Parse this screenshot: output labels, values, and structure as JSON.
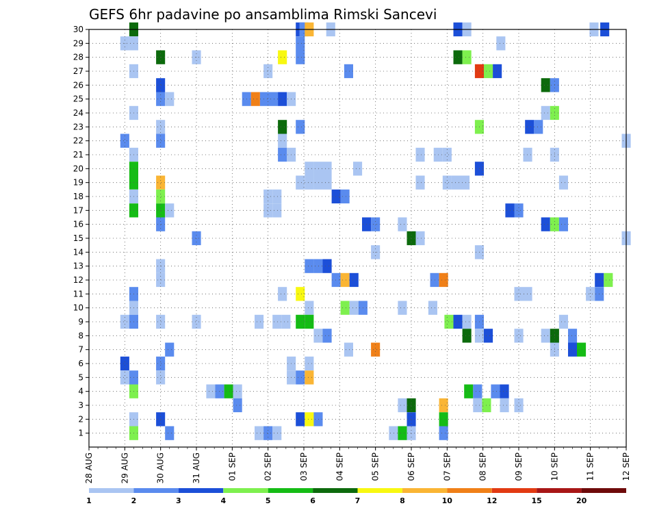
{
  "chart_data": {
    "type": "heatmap",
    "title": "GEFS 6hr padavine po ansamblima Rimski Sancevi",
    "y_ticks": [
      1,
      2,
      3,
      4,
      5,
      6,
      7,
      8,
      9,
      10,
      11,
      12,
      13,
      14,
      15,
      16,
      17,
      18,
      19,
      20,
      21,
      22,
      23,
      24,
      25,
      26,
      27,
      28,
      29,
      30
    ],
    "x_ticks": [
      "28 AUG",
      "29 AUG",
      "30 AUG",
      "31 AUG",
      "01 SEP",
      "02 SEP",
      "03 SEP",
      "04 SEP",
      "05 SEP",
      "06 SEP",
      "07 SEP",
      "08 SEP",
      "09 SEP",
      "10 SEP",
      "11 SEP",
      "12 SEP"
    ],
    "x_range_days": [
      0,
      15
    ],
    "y_range": [
      0,
      30
    ],
    "grid": true,
    "legend_placement": "bottom",
    "colorbar": {
      "labels": [
        "1",
        "2",
        "3",
        "4",
        "5",
        "6",
        "7",
        "8",
        "10",
        "12",
        "15",
        "20"
      ],
      "colors": [
        "#aac5f2",
        "#5a8bee",
        "#1c4fd8",
        "#7ef04e",
        "#15bc15",
        "#0c6a0c",
        "#f8f811",
        "#fab534",
        "#f08018",
        "#e23a12",
        "#a81616",
        "#6e0a0a"
      ]
    },
    "cells": [
      [
        1.25,
        30,
        "#0c6a0c"
      ],
      [
        5.9,
        30,
        "#1c4fd8"
      ],
      [
        6.0,
        30,
        "#5a8bee"
      ],
      [
        6.15,
        30,
        "#fab534"
      ],
      [
        6.75,
        30,
        "#aac5f2"
      ],
      [
        10.3,
        30,
        "#1c4fd8"
      ],
      [
        10.55,
        30,
        "#aac5f2"
      ],
      [
        14.1,
        30,
        "#aac5f2"
      ],
      [
        14.4,
        30,
        "#1c4fd8"
      ],
      [
        1.0,
        29,
        "#aac5f2"
      ],
      [
        1.25,
        29,
        "#aac5f2"
      ],
      [
        5.9,
        29,
        "#5a8bee"
      ],
      [
        11.5,
        29,
        "#aac5f2"
      ],
      [
        2.0,
        28,
        "#0c6a0c"
      ],
      [
        3.0,
        28,
        "#aac5f2"
      ],
      [
        5.4,
        28,
        "#f8f811"
      ],
      [
        5.9,
        28,
        "#5a8bee"
      ],
      [
        10.3,
        28,
        "#0c6a0c"
      ],
      [
        10.55,
        28,
        "#7ef04e"
      ],
      [
        1.25,
        27,
        "#aac5f2"
      ],
      [
        5.0,
        27,
        "#aac5f2"
      ],
      [
        7.25,
        27,
        "#5a8bee"
      ],
      [
        10.9,
        27,
        "#e23a12"
      ],
      [
        11.15,
        27,
        "#7ef04e"
      ],
      [
        11.4,
        27,
        "#1c4fd8"
      ],
      [
        2.0,
        26,
        "#1c4fd8"
      ],
      [
        12.75,
        26,
        "#0c6a0c"
      ],
      [
        13.0,
        26,
        "#5a8bee"
      ],
      [
        2.0,
        25,
        "#5a8bee"
      ],
      [
        2.25,
        25,
        "#aac5f2"
      ],
      [
        4.4,
        25,
        "#5a8bee"
      ],
      [
        4.65,
        25,
        "#f08018"
      ],
      [
        4.9,
        25,
        "#5a8bee"
      ],
      [
        5.15,
        25,
        "#5a8bee"
      ],
      [
        5.4,
        25,
        "#1c4fd8"
      ],
      [
        5.65,
        25,
        "#aac5f2"
      ],
      [
        1.25,
        24,
        "#aac5f2"
      ],
      [
        12.75,
        24,
        "#aac5f2"
      ],
      [
        13.0,
        24,
        "#7ef04e"
      ],
      [
        2.0,
        23,
        "#aac5f2"
      ],
      [
        5.4,
        23,
        "#0c6a0c"
      ],
      [
        5.9,
        23,
        "#5a8bee"
      ],
      [
        10.9,
        23,
        "#7ef04e"
      ],
      [
        12.3,
        23,
        "#1c4fd8"
      ],
      [
        12.55,
        23,
        "#5a8bee"
      ],
      [
        1.0,
        22,
        "#5a8bee"
      ],
      [
        2.0,
        22,
        "#5a8bee"
      ],
      [
        5.4,
        22,
        "#aac5f2"
      ],
      [
        15.0,
        22,
        "#aac5f2"
      ],
      [
        1.25,
        21,
        "#aac5f2"
      ],
      [
        5.4,
        21,
        "#5a8bee"
      ],
      [
        5.65,
        21,
        "#aac5f2"
      ],
      [
        9.25,
        21,
        "#aac5f2"
      ],
      [
        9.75,
        21,
        "#aac5f2"
      ],
      [
        10.0,
        21,
        "#aac5f2"
      ],
      [
        12.25,
        21,
        "#aac5f2"
      ],
      [
        13.0,
        21,
        "#aac5f2"
      ],
      [
        1.25,
        20,
        "#15bc15"
      ],
      [
        6.15,
        20,
        "#aac5f2"
      ],
      [
        6.4,
        20,
        "#aac5f2"
      ],
      [
        6.65,
        20,
        "#aac5f2"
      ],
      [
        7.5,
        20,
        "#aac5f2"
      ],
      [
        10.9,
        20,
        "#1c4fd8"
      ],
      [
        1.25,
        19,
        "#15bc15"
      ],
      [
        6.15,
        19,
        "#aac5f2"
      ],
      [
        6.4,
        19,
        "#aac5f2"
      ],
      [
        6.65,
        19,
        "#aac5f2"
      ],
      [
        2.0,
        19,
        "#fab534"
      ],
      [
        5.9,
        19,
        "#aac5f2"
      ],
      [
        9.25,
        19,
        "#aac5f2"
      ],
      [
        10.0,
        19,
        "#aac5f2"
      ],
      [
        10.25,
        19,
        "#aac5f2"
      ],
      [
        10.5,
        19,
        "#aac5f2"
      ],
      [
        13.25,
        19,
        "#aac5f2"
      ],
      [
        2.0,
        18,
        "#7ef04e"
      ],
      [
        1.25,
        18,
        "#aac5f2"
      ],
      [
        5.0,
        18,
        "#aac5f2"
      ],
      [
        5.25,
        18,
        "#aac5f2"
      ],
      [
        6.9,
        18,
        "#1c4fd8"
      ],
      [
        7.15,
        18,
        "#5a8bee"
      ],
      [
        1.25,
        17,
        "#15bc15"
      ],
      [
        2.0,
        17,
        "#15bc15"
      ],
      [
        2.25,
        17,
        "#aac5f2"
      ],
      [
        5.0,
        17,
        "#aac5f2"
      ],
      [
        5.25,
        17,
        "#aac5f2"
      ],
      [
        11.75,
        17,
        "#1c4fd8"
      ],
      [
        12.0,
        17,
        "#5a8bee"
      ],
      [
        2.0,
        16,
        "#5a8bee"
      ],
      [
        7.75,
        16,
        "#1c4fd8"
      ],
      [
        8.0,
        16,
        "#5a8bee"
      ],
      [
        8.75,
        16,
        "#aac5f2"
      ],
      [
        12.75,
        16,
        "#1c4fd8"
      ],
      [
        13.0,
        16,
        "#7ef04e"
      ],
      [
        13.25,
        16,
        "#5a8bee"
      ],
      [
        3.0,
        15,
        "#5a8bee"
      ],
      [
        9.0,
        15,
        "#0c6a0c"
      ],
      [
        9.25,
        15,
        "#aac5f2"
      ],
      [
        15.0,
        15,
        "#aac5f2"
      ],
      [
        8.0,
        14,
        "#aac5f2"
      ],
      [
        10.9,
        14,
        "#aac5f2"
      ],
      [
        6.15,
        13,
        "#5a8bee"
      ],
      [
        6.4,
        13,
        "#5a8bee"
      ],
      [
        6.65,
        13,
        "#1c4fd8"
      ],
      [
        2.0,
        13,
        "#aac5f2"
      ],
      [
        2.0,
        12,
        "#aac5f2"
      ],
      [
        6.9,
        12,
        "#5a8bee"
      ],
      [
        7.15,
        12,
        "#fab534"
      ],
      [
        7.4,
        12,
        "#1c4fd8"
      ],
      [
        9.65,
        12,
        "#5a8bee"
      ],
      [
        9.9,
        12,
        "#f08018"
      ],
      [
        14.25,
        12,
        "#1c4fd8"
      ],
      [
        14.5,
        12,
        "#7ef04e"
      ],
      [
        1.25,
        11,
        "#5a8bee"
      ],
      [
        5.4,
        11,
        "#aac5f2"
      ],
      [
        5.9,
        11,
        "#f8f811"
      ],
      [
        12.0,
        11,
        "#aac5f2"
      ],
      [
        12.25,
        11,
        "#aac5f2"
      ],
      [
        14.0,
        11,
        "#aac5f2"
      ],
      [
        14.25,
        11,
        "#5a8bee"
      ],
      [
        1.25,
        10,
        "#aac5f2"
      ],
      [
        6.15,
        10,
        "#aac5f2"
      ],
      [
        7.15,
        10,
        "#7ef04e"
      ],
      [
        7.4,
        10,
        "#aac5f2"
      ],
      [
        7.65,
        10,
        "#5a8bee"
      ],
      [
        8.75,
        10,
        "#aac5f2"
      ],
      [
        9.6,
        10,
        "#aac5f2"
      ],
      [
        1.0,
        9,
        "#aac5f2"
      ],
      [
        1.25,
        9,
        "#5a8bee"
      ],
      [
        2.0,
        9,
        "#aac5f2"
      ],
      [
        3.0,
        9,
        "#aac5f2"
      ],
      [
        4.75,
        9,
        "#aac5f2"
      ],
      [
        5.25,
        9,
        "#aac5f2"
      ],
      [
        5.5,
        9,
        "#aac5f2"
      ],
      [
        5.9,
        9,
        "#15bc15"
      ],
      [
        6.15,
        9,
        "#15bc15"
      ],
      [
        10.05,
        9,
        "#7ef04e"
      ],
      [
        10.3,
        9,
        "#1c4fd8"
      ],
      [
        10.55,
        9,
        "#aac5f2"
      ],
      [
        10.9,
        9,
        "#5a8bee"
      ],
      [
        13.25,
        9,
        "#aac5f2"
      ],
      [
        6.4,
        8,
        "#aac5f2"
      ],
      [
        6.65,
        8,
        "#5a8bee"
      ],
      [
        10.55,
        8,
        "#0c6a0c"
      ],
      [
        10.9,
        8,
        "#aac5f2"
      ],
      [
        11.15,
        8,
        "#1c4fd8"
      ],
      [
        12.0,
        8,
        "#aac5f2"
      ],
      [
        12.75,
        8,
        "#aac5f2"
      ],
      [
        13.0,
        8,
        "#0c6a0c"
      ],
      [
        13.5,
        8,
        "#5a8bee"
      ],
      [
        2.25,
        7,
        "#5a8bee"
      ],
      [
        7.25,
        7,
        "#aac5f2"
      ],
      [
        8.0,
        7,
        "#f08018"
      ],
      [
        13.0,
        7,
        "#aac5f2"
      ],
      [
        13.5,
        7,
        "#1c4fd8"
      ],
      [
        13.75,
        7,
        "#15bc15"
      ],
      [
        1.0,
        6,
        "#1c4fd8"
      ],
      [
        2.0,
        6,
        "#5a8bee"
      ],
      [
        5.65,
        6,
        "#aac5f2"
      ],
      [
        6.15,
        6,
        "#aac5f2"
      ],
      [
        1.0,
        5,
        "#aac5f2"
      ],
      [
        1.25,
        5,
        "#5a8bee"
      ],
      [
        2.0,
        5,
        "#aac5f2"
      ],
      [
        5.65,
        5,
        "#aac5f2"
      ],
      [
        5.9,
        5,
        "#5a8bee"
      ],
      [
        6.15,
        5,
        "#fab534"
      ],
      [
        1.25,
        4,
        "#7ef04e"
      ],
      [
        3.4,
        4,
        "#aac5f2"
      ],
      [
        3.65,
        4,
        "#5a8bee"
      ],
      [
        3.9,
        4,
        "#15bc15"
      ],
      [
        4.15,
        4,
        "#aac5f2"
      ],
      [
        10.6,
        4,
        "#15bc15"
      ],
      [
        10.85,
        4,
        "#5a8bee"
      ],
      [
        11.35,
        4,
        "#5a8bee"
      ],
      [
        11.6,
        4,
        "#1c4fd8"
      ],
      [
        4.15,
        3,
        "#5a8bee"
      ],
      [
        8.75,
        3,
        "#aac5f2"
      ],
      [
        9.0,
        3,
        "#0c6a0c"
      ],
      [
        9.9,
        3,
        "#fab534"
      ],
      [
        10.85,
        3,
        "#aac5f2"
      ],
      [
        11.1,
        3,
        "#7ef04e"
      ],
      [
        11.6,
        3,
        "#aac5f2"
      ],
      [
        12.0,
        3,
        "#aac5f2"
      ],
      [
        1.25,
        2,
        "#aac5f2"
      ],
      [
        2.0,
        2,
        "#1c4fd8"
      ],
      [
        5.9,
        2,
        "#1c4fd8"
      ],
      [
        6.15,
        2,
        "#f8f811"
      ],
      [
        6.4,
        2,
        "#5a8bee"
      ],
      [
        9.0,
        2,
        "#1c4fd8"
      ],
      [
        9.9,
        2,
        "#15bc15"
      ],
      [
        1.25,
        1,
        "#7ef04e"
      ],
      [
        2.25,
        1,
        "#5a8bee"
      ],
      [
        4.75,
        1,
        "#aac5f2"
      ],
      [
        5.0,
        1,
        "#5a8bee"
      ],
      [
        5.25,
        1,
        "#aac5f2"
      ],
      [
        8.5,
        1,
        "#aac5f2"
      ],
      [
        8.75,
        1,
        "#15bc15"
      ],
      [
        9.0,
        1,
        "#aac5f2"
      ],
      [
        9.9,
        1,
        "#5a8bee"
      ]
    ]
  }
}
